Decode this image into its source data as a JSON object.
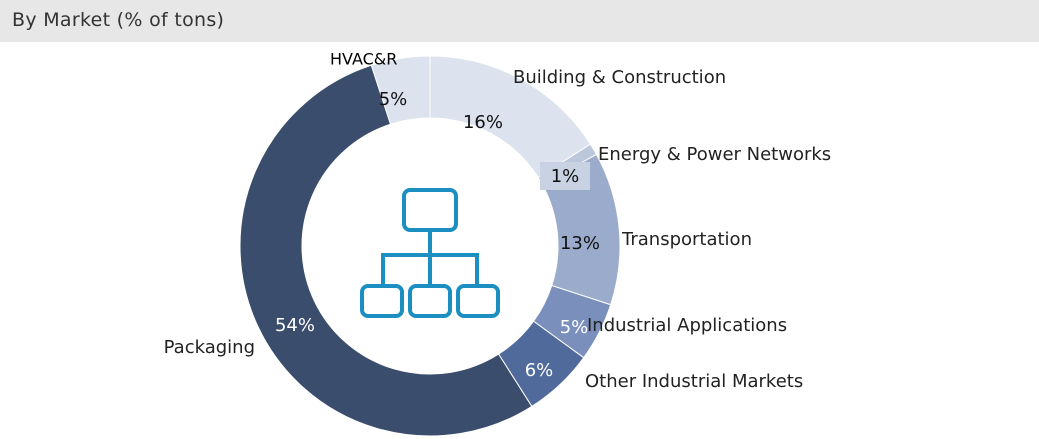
{
  "chart_data": {
    "type": "donut",
    "title": "By Market  (% of tons)",
    "categories": [
      "HVAC&R",
      "Building & Construction",
      "Energy & Power Networks",
      "Transportation",
      "Industrial Applications",
      "Other Industrial Markets",
      "Packaging"
    ],
    "values": [
      5,
      16,
      1,
      13,
      5,
      6,
      54
    ],
    "value_labels": [
      "5%",
      "16%",
      "1%",
      "13%",
      "5%",
      "6%",
      "54%"
    ],
    "colors": [
      "#dce2ee",
      "#dce2ee",
      "#bdc7db",
      "#9aabcb",
      "#7a8fbb",
      "#506b9b",
      "#3a4d6c"
    ]
  }
}
